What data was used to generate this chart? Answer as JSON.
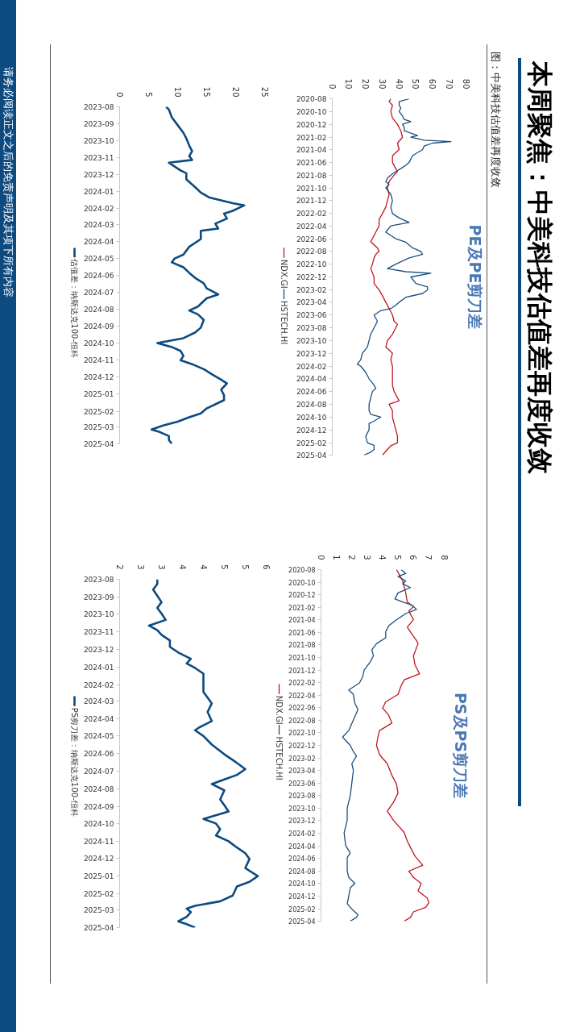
{
  "chart_data": [
    {
      "type": "other",
      "title": "本周聚焦：中美科技估值差再度收敛",
      "subtitle": "图：中美科技估值差再度收敛",
      "annotations": [
        "请务必阅读正文之后的免责声明及其项下所有内容"
      ]
    },
    {
      "type": "line",
      "orientation": "horizontal",
      "title": "PE及PE剪刀差",
      "xlim": [
        0,
        80
      ],
      "xticks": [
        0,
        10,
        20,
        30,
        40,
        50,
        60,
        70,
        80
      ],
      "ylim": [
        "2025-04",
        "2020-08"
      ],
      "yticks": [
        "2020-08",
        "2020-10",
        "2020-12",
        "2021-02",
        "2021-04",
        "2021-06",
        "2021-08",
        "2021-10",
        "2021-12",
        "2022-02",
        "2022-04",
        "2022-06",
        "2022-08",
        "2022-10",
        "2022-12",
        "2023-02",
        "2023-04",
        "2023-06",
        "2023-08",
        "2023-10",
        "2023-12",
        "2024-02",
        "2024-04",
        "2024-06",
        "2024-08",
        "2024-10",
        "2024-12",
        "2025-02",
        "2025-04"
      ],
      "legend": "left",
      "series": [
        {
          "name": "NDX.GI",
          "color": "#c0161e",
          "x": [
            "2020-08-01",
            "2020-08-15",
            "2020-09-01",
            "2020-10-01",
            "2020-11-01",
            "2020-12-01",
            "2021-01-01",
            "2021-02-01",
            "2021-03-01",
            "2021-04-01",
            "2021-05-01",
            "2021-06-01",
            "2021-07-01",
            "2021-07-15",
            "2021-08-01",
            "2021-09-01",
            "2021-10-01",
            "2021-11-01",
            "2021-12-01",
            "2022-01-01",
            "2022-02-01",
            "2022-03-01",
            "2022-04-01",
            "2022-05-01",
            "2022-06-01",
            "2022-06-15",
            "2022-07-15",
            "2022-08-01",
            "2022-08-15",
            "2022-09-01",
            "2022-10-01",
            "2022-10-22",
            "2022-12-01",
            "2023-01-01",
            "2023-02-01",
            "2023-03-01",
            "2023-04-01",
            "2023-05-01",
            "2023-06-01",
            "2023-07-01",
            "2023-07-15",
            "2023-08-01",
            "2023-09-01",
            "2023-10-01",
            "2023-11-01",
            "2023-11-15",
            "2023-12-01",
            "2024-01-01",
            "2024-02-01",
            "2024-03-01",
            "2024-04-01",
            "2024-05-01",
            "2024-06-01",
            "2024-07-01",
            "2024-07-15",
            "2024-08-01",
            "2024-09-01",
            "2024-10-01",
            "2024-11-01",
            "2024-12-01",
            "2025-01-01",
            "2025-02-01",
            "2025-02-15",
            "2025-03-05",
            "2025-04-01"
          ],
          "values": [
            35,
            34,
            36,
            35,
            36,
            39,
            41,
            42,
            39,
            40,
            36,
            36,
            38,
            39,
            37,
            34,
            33,
            34,
            33,
            32,
            30,
            28,
            28,
            26,
            24,
            23,
            27,
            28,
            26,
            25,
            24,
            23,
            25,
            25,
            28,
            30,
            32,
            34,
            36,
            37,
            39,
            38,
            36,
            33,
            32,
            34,
            36,
            35,
            36,
            36,
            36,
            36,
            37,
            39,
            40,
            34,
            36,
            36,
            37,
            38,
            39,
            39,
            35,
            33,
            30
          ]
        },
        {
          "name": "HSTECH.HI",
          "color": "#1b4f7e",
          "x": [
            "2020-08-01",
            "2020-08-15",
            "2020-09-01",
            "2020-09-15",
            "2020-10-01",
            "2020-10-22",
            "2020-11-08",
            "2020-11-18",
            "2020-12-01",
            "2020-12-15",
            "2021-01-01",
            "2021-01-15",
            "2021-01-24",
            "2021-02-01",
            "2021-02-15",
            "2021-02-22",
            "2021-03-01",
            "2021-03-15",
            "2021-04-01",
            "2021-04-20",
            "2021-05-01",
            "2021-06-01",
            "2021-06-15",
            "2021-07-01",
            "2021-07-15",
            "2021-08-01",
            "2021-08-15",
            "2021-09-01",
            "2021-09-15",
            "2021-10-01",
            "2021-11-01",
            "2021-12-01",
            "2022-01-01",
            "2022-02-01",
            "2022-02-22",
            "2022-03-15",
            "2022-04-01",
            "2022-05-01",
            "2022-06-01",
            "2022-06-18",
            "2022-07-15",
            "2022-08-01",
            "2022-08-15",
            "2022-09-01",
            "2022-10-01",
            "2022-10-22",
            "2022-11-06",
            "2022-11-13",
            "2022-12-01",
            "2023-01-01",
            "2023-01-18",
            "2023-02-01",
            "2023-02-18",
            "2023-03-08",
            "2023-04-01",
            "2023-04-15",
            "2023-05-01",
            "2023-05-11",
            "2023-06-01",
            "2023-07-01",
            "2023-08-01",
            "2023-09-01",
            "2023-10-01",
            "2023-11-01",
            "2023-12-01",
            "2024-01-01",
            "2024-01-22",
            "2024-02-01",
            "2024-03-01",
            "2024-04-01",
            "2024-05-01",
            "2024-05-17",
            "2024-06-01",
            "2024-07-01",
            "2024-08-01",
            "2024-09-01",
            "2024-09-18",
            "2024-10-01",
            "2024-10-20",
            "2024-11-01",
            "2024-12-01",
            "2025-01-01",
            "2025-02-01",
            "2025-02-13",
            "2025-03-05",
            "2025-03-18",
            "2025-04-01"
          ],
          "values": [
            46,
            40,
            40,
            41,
            40,
            42,
            43,
            47,
            42,
            43,
            43,
            48,
            51,
            47,
            55,
            71,
            60,
            55,
            54,
            50,
            48,
            46,
            44,
            41,
            38,
            35,
            33,
            32,
            34,
            32,
            35,
            36,
            35,
            36,
            40,
            46,
            35,
            32,
            38,
            44,
            48,
            53,
            54,
            46,
            38,
            33,
            44,
            59,
            47,
            50,
            57,
            57,
            54,
            44,
            40,
            38,
            35,
            29,
            25,
            27,
            25,
            23,
            22,
            21,
            18,
            17,
            15,
            17,
            20,
            22,
            25,
            26,
            24,
            23,
            22,
            22,
            23,
            29,
            25,
            22,
            22,
            20,
            21,
            25,
            25,
            23,
            19
          ]
        }
      ]
    },
    {
      "type": "line",
      "orientation": "horizontal",
      "title": "PS及PS剪刀差",
      "xlim": [
        0,
        8
      ],
      "xticks": [
        0,
        1,
        2,
        3,
        4,
        5,
        6,
        7,
        8
      ],
      "ylim": [
        "2025-04",
        "2020-08"
      ],
      "yticks": [
        "2020-08",
        "2020-10",
        "2020-12",
        "2021-02",
        "2021-04",
        "2021-06",
        "2021-08",
        "2021-10",
        "2021-12",
        "2022-02",
        "2022-04",
        "2022-06",
        "2022-08",
        "2022-10",
        "2022-12",
        "2023-02",
        "2023-04",
        "2023-06",
        "2023-08",
        "2023-10",
        "2023-12",
        "2024-02",
        "2024-04",
        "2024-06",
        "2024-08",
        "2024-10",
        "2024-12",
        "2025-02",
        "2025-04"
      ],
      "legend": "left",
      "series": [
        {
          "name": "NDX.GI",
          "color": "#c0161e",
          "x": [
            "2020-08-01",
            "2020-08-27",
            "2020-09-25",
            "2020-11-22",
            "2021-01-05",
            "2021-01-27",
            "2021-02-18",
            "2021-04-01",
            "2021-05-07",
            "2021-05-29",
            "2021-07-11",
            "2021-07-26",
            "2021-09-23",
            "2021-11-06",
            "2021-12-19",
            "2022-01-17",
            "2022-02-15",
            "2022-03-29",
            "2022-05-04",
            "2022-06-03",
            "2022-07-09",
            "2022-08-15",
            "2022-09-20",
            "2022-10-19",
            "2022-12-01",
            "2023-01-15",
            "2023-02-28",
            "2023-04-25",
            "2023-06-07",
            "2023-07-20",
            "2023-09-03",
            "2023-10-16",
            "2023-11-29",
            "2024-01-27",
            "2024-03-09",
            "2024-04-08",
            "2024-05-21",
            "2024-07-04",
            "2024-08-02",
            "2024-09-01",
            "2024-09-30",
            "2024-11-05",
            "2024-12-11",
            "2025-01-02",
            "2025-01-24",
            "2025-02-15",
            "2025-03-14",
            "2025-04-01"
          ],
          "values": [
            4.9,
            5.1,
            5.3,
            5.5,
            5.6,
            6.0,
            5.7,
            6.0,
            5.6,
            5.8,
            6.2,
            6.3,
            6.0,
            6.1,
            6.4,
            5.4,
            5.2,
            5.0,
            4.2,
            4.0,
            4.4,
            4.6,
            3.8,
            3.7,
            3.6,
            3.8,
            4.3,
            4.6,
            4.9,
            5.0,
            4.7,
            4.3,
            4.7,
            5.4,
            5.6,
            5.8,
            6.1,
            6.6,
            5.7,
            6.0,
            6.5,
            6.3,
            6.9,
            7.0,
            6.8,
            6.0,
            5.8,
            5.4
          ]
        },
        {
          "name": "HSTECH.HI",
          "color": "#1b4f7e",
          "x": [
            "2020-08-01",
            "2020-08-20",
            "2020-09-03",
            "2020-09-25",
            "2020-10-09",
            "2020-10-27",
            "2020-11-22",
            "2020-12-21",
            "2021-01-05",
            "2021-01-20",
            "2021-02-10",
            "2021-03-02",
            "2021-04-01",
            "2021-04-30",
            "2021-05-29",
            "2021-06-27",
            "2021-07-26",
            "2021-08-24",
            "2021-09-23",
            "2021-10-22",
            "2021-12-01",
            "2022-01-03",
            "2022-02-01",
            "2022-03-07",
            "2022-03-29",
            "2022-05-12",
            "2022-06-10",
            "2022-07-31",
            "2022-09-20",
            "2022-10-22",
            "2022-12-01",
            "2022-12-31",
            "2023-01-22",
            "2023-02-28",
            "2023-04-01",
            "2023-06-01",
            "2023-08-01",
            "2023-10-01",
            "2023-11-29",
            "2024-01-30",
            "2024-03-30",
            "2024-05-06",
            "2024-05-28",
            "2024-07-30",
            "2024-09-01",
            "2024-09-30",
            "2024-10-21",
            "2024-11-30",
            "2025-01-06",
            "2025-02-01",
            "2025-03-01",
            "2025-03-14",
            "2025-04-01"
          ],
          "values": [
            5.2,
            5.5,
            5.0,
            5.5,
            5.3,
            5.8,
            5.0,
            4.8,
            5.3,
            5.9,
            6.2,
            5.5,
            4.9,
            4.4,
            4.2,
            4.2,
            3.6,
            3.3,
            3.4,
            3.2,
            2.8,
            2.7,
            2.5,
            1.8,
            2.1,
            2.2,
            2.4,
            2.1,
            1.8,
            1.4,
            1.9,
            2.1,
            2.3,
            2.0,
            2.1,
            2.0,
            1.9,
            1.7,
            1.7,
            1.5,
            1.6,
            1.9,
            1.7,
            1.7,
            1.8,
            2.2,
            1.9,
            1.8,
            1.7,
            2.0,
            2.4,
            2.3,
            1.9
          ]
        }
      ]
    },
    {
      "type": "line",
      "orientation": "horizontal",
      "xlim": [
        0,
        25
      ],
      "xticks": [
        0,
        5,
        10,
        15,
        20,
        25
      ],
      "ylim": [
        "2025-04",
        "2023-08"
      ],
      "yticks": [
        "2023-08",
        "2023-09",
        "2023-10",
        "2023-11",
        "2023-12",
        "2024-01",
        "2024-02",
        "2024-03",
        "2024-04",
        "2024-05",
        "2024-06",
        "2024-07",
        "2024-08",
        "2024-09",
        "2024-10",
        "2024-11",
        "2024-12",
        "2025-01",
        "2025-02",
        "2025-03",
        "2025-04"
      ],
      "legend": "left",
      "series": [
        {
          "name": "估值差：纳斯达克100-恒科",
          "color": "#0d4a80",
          "x": [
            "2023-08-01",
            "2023-08-06",
            "2023-08-20",
            "2023-09-03",
            "2023-09-17",
            "2023-09-27",
            "2023-10-10",
            "2023-10-20",
            "2023-10-29",
            "2023-11-05",
            "2023-11-10",
            "2023-11-17",
            "2023-11-24",
            "2023-11-29",
            "2023-12-10",
            "2023-12-24",
            "2024-01-03",
            "2024-01-12",
            "2024-01-17",
            "2024-01-22",
            "2024-01-26",
            "2024-02-05",
            "2024-02-10",
            "2024-02-19",
            "2024-02-28",
            "2024-03-08",
            "2024-03-12",
            "2024-03-27",
            "2024-04-10",
            "2024-04-24",
            "2024-05-01",
            "2024-05-08",
            "2024-05-17",
            "2024-05-27",
            "2024-06-05",
            "2024-06-15",
            "2024-06-24",
            "2024-07-05",
            "2024-07-12",
            "2024-07-27",
            "2024-08-03",
            "2024-08-10",
            "2024-08-20",
            "2024-09-03",
            "2024-09-12",
            "2024-09-22",
            "2024-10-01",
            "2024-10-08",
            "2024-10-15",
            "2024-10-24",
            "2024-11-01",
            "2024-11-08",
            "2024-11-17",
            "2024-11-27",
            "2024-12-06",
            "2024-12-13",
            "2024-12-24",
            "2025-01-03",
            "2025-01-12",
            "2025-01-17",
            "2025-01-27",
            "2025-02-05",
            "2025-02-12",
            "2025-02-20",
            "2025-02-27",
            "2025-03-06",
            "2025-03-11",
            "2025-03-18",
            "2025-03-25",
            "2025-04-01"
          ],
          "values": [
            8,
            8.5,
            9,
            10,
            11,
            11.5,
            12,
            12.5,
            12,
            12.5,
            8.5,
            9.5,
            10.5,
            11.5,
            11.5,
            13,
            14,
            15.5,
            17.5,
            19.5,
            21.5,
            19.5,
            18,
            18.5,
            16.5,
            17,
            14,
            14,
            12,
            11,
            9.5,
            9,
            11,
            12,
            13,
            14.5,
            15,
            17,
            15,
            13.5,
            12,
            13.5,
            14.5,
            14,
            13,
            11,
            6.5,
            9,
            10.5,
            11,
            10.5,
            12.5,
            14.5,
            16,
            17.5,
            18.5,
            17.5,
            18,
            18,
            17,
            15,
            14,
            12,
            10,
            7.5,
            5.5,
            7,
            8.5,
            8.5,
            9
          ]
        }
      ]
    },
    {
      "type": "line",
      "orientation": "horizontal",
      "xlim": [
        2,
        5.5
      ],
      "xticks": [
        2,
        {
          "value": 2.5,
          "label": "3"
        },
        3,
        {
          "value": 3.5,
          "label": "4"
        },
        4,
        {
          "value": 4.5,
          "label": "5"
        },
        5,
        {
          "value": 5.5,
          "label": "6"
        }
      ],
      "ylim": [
        "2025-04",
        "2023-08"
      ],
      "yticks": [
        "2023-08",
        "2023-09",
        "2023-10",
        "2023-11",
        "2023-12",
        "2024-01",
        "2024-02",
        "2024-03",
        "2024-04",
        "2024-05",
        "2024-06",
        "2024-07",
        "2024-08",
        "2024-09",
        "2024-10",
        "2024-11",
        "2024-12",
        "2025-01",
        "2025-02",
        "2025-03",
        "2025-04"
      ],
      "legend": "left",
      "series": [
        {
          "name": "PS剪刀差：纳斯达克100-恒科",
          "color": "#0d4a80",
          "x": [
            "2023-08-01",
            "2023-08-09",
            "2023-08-19",
            "2023-08-30",
            "2023-09-10",
            "2023-09-20",
            "2023-09-30",
            "2023-10-11",
            "2023-10-21",
            "2023-10-29",
            "2023-11-06",
            "2023-11-16",
            "2023-11-27",
            "2023-12-07",
            "2023-12-18",
            "2023-12-26",
            "2024-01-03",
            "2024-01-13",
            "2024-01-24",
            "2024-02-04",
            "2024-02-14",
            "2024-02-24",
            "2024-03-05",
            "2024-03-20",
            "2024-04-05",
            "2024-04-16",
            "2024-04-21",
            "2024-05-01",
            "2024-05-16",
            "2024-06-02",
            "2024-06-12",
            "2024-06-17",
            "2024-06-28",
            "2024-07-08",
            "2024-07-16",
            "2024-07-24",
            "2024-08-04",
            "2024-08-20",
            "2024-08-30",
            "2024-09-10",
            "2024-09-23",
            "2024-10-01",
            "2024-10-11",
            "2024-10-22",
            "2024-11-01",
            "2024-11-12",
            "2024-11-22",
            "2024-12-02",
            "2024-12-18",
            "2025-01-01",
            "2025-01-11",
            "2025-01-19",
            "2025-02-04",
            "2025-02-14",
            "2025-02-22",
            "2025-02-27",
            "2025-03-05",
            "2025-03-13",
            "2025-03-21",
            "2025-03-26",
            "2025-04-01"
          ],
          "values": [
            2.9,
            2.9,
            2.8,
            2.9,
            3.0,
            2.9,
            3.0,
            3.1,
            2.7,
            2.9,
            3.0,
            3.2,
            3.2,
            3.4,
            3.7,
            3.6,
            3.8,
            4.0,
            4.0,
            4.0,
            4.0,
            4.1,
            4.2,
            4.1,
            4.2,
            3.9,
            3.8,
            4.0,
            4.2,
            4.5,
            4.7,
            4.8,
            5.0,
            4.8,
            4.5,
            4.2,
            4.5,
            4.4,
            4.5,
            4.6,
            4.0,
            4.3,
            4.4,
            4.3,
            4.6,
            4.8,
            5.0,
            5.1,
            5.0,
            5.3,
            5.1,
            4.8,
            4.7,
            4.4,
            3.8,
            3.6,
            3.7,
            3.6,
            3.4,
            3.6,
            3.8
          ]
        }
      ]
    }
  ]
}
